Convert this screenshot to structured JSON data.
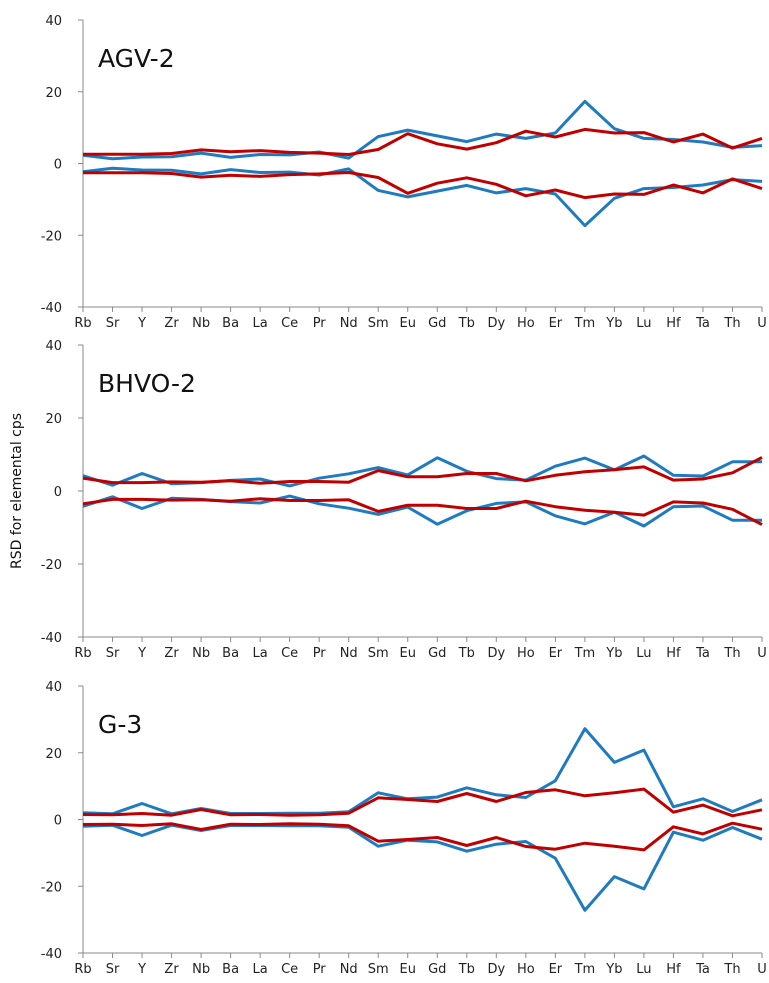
{
  "chart_data": {
    "type": "line",
    "ylabel": "RSD for elemental cps",
    "categories": [
      "Rb",
      "Sr",
      "Y",
      "Zr",
      "Nb",
      "Ba",
      "La",
      "Ce",
      "Pr",
      "Nd",
      "Sm",
      "Eu",
      "Gd",
      "Tb",
      "Dy",
      "Ho",
      "Er",
      "Tm",
      "Yb",
      "Lu",
      "Hf",
      "Ta",
      "Th",
      "U"
    ],
    "yticks": [
      -40,
      -20,
      0,
      20,
      40
    ],
    "ylim": [
      -40,
      40
    ],
    "grid": false,
    "colors": {
      "blue": "#1f7bbf",
      "red": "#c00000"
    },
    "panels": [
      {
        "title": "AGV-2",
        "series": [
          {
            "color": "#1f7bbf",
            "values": [
              2.3,
              1.3,
              1.8,
              1.9,
              2.9,
              1.7,
              2.5,
              2.4,
              3.2,
              1.5,
              7.5,
              9.3,
              7.7,
              6.1,
              8.2,
              7.0,
              8.5,
              17.3,
              9.7,
              7.0,
              6.7,
              6.0,
              4.5,
              5.0
            ]
          },
          {
            "color": "#c00000",
            "values": [
              2.6,
              2.6,
              2.6,
              2.8,
              3.8,
              3.3,
              3.6,
              3.1,
              2.9,
              2.5,
              3.9,
              8.3,
              5.5,
              4.0,
              5.8,
              9.0,
              7.4,
              9.5,
              8.5,
              8.6,
              6.0,
              8.2,
              4.3,
              7.0
            ]
          }
        ]
      },
      {
        "title": "BHVO-2",
        "series": [
          {
            "color": "#1f7bbf",
            "values": [
              4.2,
              1.6,
              4.8,
              2.0,
              2.3,
              2.9,
              3.3,
              1.4,
              3.5,
              4.7,
              6.4,
              4.4,
              9.1,
              5.4,
              3.4,
              3.0,
              6.8,
              9.0,
              5.8,
              9.6,
              4.3,
              4.1,
              8.0,
              8.0
            ]
          },
          {
            "color": "#c00000",
            "values": [
              3.5,
              2.3,
              2.3,
              2.5,
              2.4,
              2.8,
              2.1,
              2.6,
              2.6,
              2.4,
              5.6,
              3.9,
              3.9,
              4.8,
              4.8,
              2.8,
              4.3,
              5.3,
              5.8,
              6.6,
              3.0,
              3.3,
              5.0,
              9.2
            ]
          }
        ]
      },
      {
        "title": "G-3",
        "series": [
          {
            "color": "#1f7bbf",
            "values": [
              2.0,
              1.7,
              4.8,
              1.7,
              3.3,
              1.8,
              1.8,
              1.9,
              1.9,
              2.3,
              8.0,
              6.2,
              6.7,
              9.5,
              7.4,
              6.6,
              11.6,
              27.2,
              17.1,
              20.8,
              3.8,
              6.2,
              2.4,
              5.9
            ]
          },
          {
            "color": "#c00000",
            "values": [
              1.5,
              1.4,
              1.8,
              1.3,
              3.0,
              1.4,
              1.5,
              1.3,
              1.4,
              1.9,
              6.5,
              6.0,
              5.4,
              7.8,
              5.4,
              8.1,
              8.9,
              7.1,
              8.0,
              9.1,
              2.2,
              4.3,
              1.1,
              2.9
            ]
          }
        ]
      }
    ]
  }
}
